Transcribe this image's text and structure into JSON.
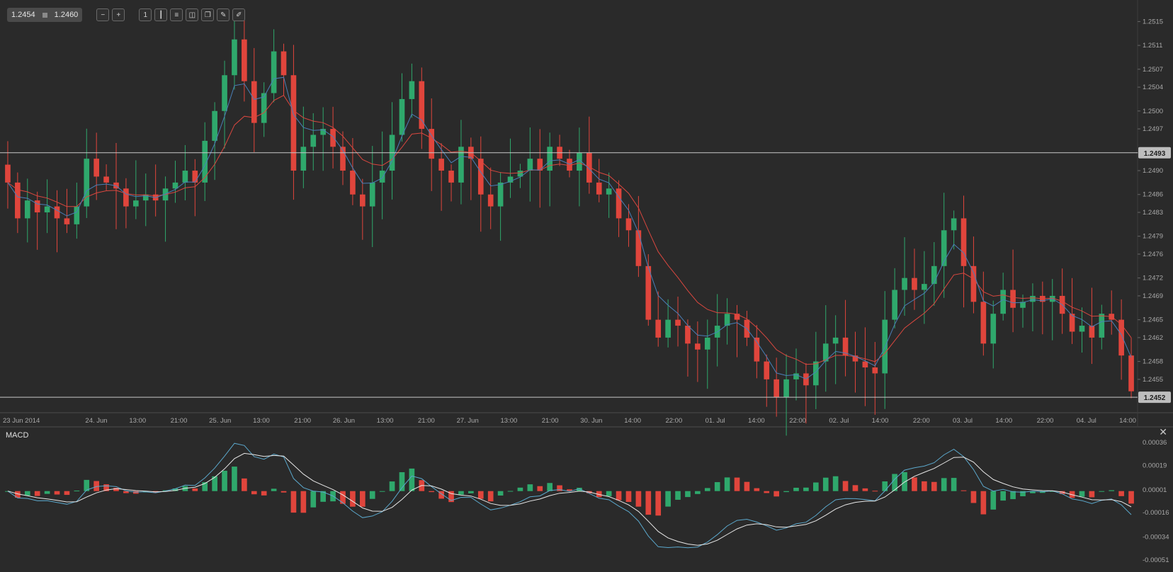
{
  "toolbar": {
    "bid": "1.2454",
    "ask": "1.2460",
    "buttons": [
      {
        "name": "zoom-out-icon",
        "glyph": "−"
      },
      {
        "name": "zoom-in-icon",
        "glyph": "+"
      },
      {
        "name": "timeframe-icon",
        "glyph": "1"
      },
      {
        "name": "candle-type-icon",
        "glyph": "┃"
      },
      {
        "name": "indicators-icon",
        "glyph": "≡"
      },
      {
        "name": "chart-icon",
        "glyph": "◫"
      },
      {
        "name": "objects-icon",
        "glyph": "❐"
      },
      {
        "name": "edit-icon",
        "glyph": "✎"
      },
      {
        "name": "draw-icon",
        "glyph": "✐"
      }
    ]
  },
  "macd_label": "MACD",
  "close_glyph": "✕",
  "colors": {
    "background": "#2a2a2a",
    "bull": "#2fa86c",
    "bear": "#e0453c",
    "ma_fast": "#4a7fb8",
    "ma_slow": "#d9473f",
    "macd_line": "#5ba8cc",
    "signal_line": "#e8e8e8",
    "grid_text": "#a8a8a8"
  },
  "chart_data": [
    {
      "type": "candlestick",
      "y_ticks": [
        "1.2515",
        "1.2511",
        "1.2507",
        "1.2504",
        "1.2500",
        "1.2497",
        "1.2493",
        "1.2490",
        "1.2486",
        "1.2483",
        "1.2479",
        "1.2476",
        "1.2472",
        "1.2469",
        "1.2465",
        "1.2462",
        "1.2458",
        "1.2455"
      ],
      "ylim": [
        1.245,
        1.2516
      ],
      "x_tick_labels": [
        "23 Jun 2014",
        "24. Jun",
        "13:00",
        "21:00",
        "25. Jun",
        "13:00",
        "21:00",
        "26. Jun",
        "13:00",
        "21:00",
        "27. Jun",
        "13:00",
        "21:00",
        "30. Jun",
        "14:00",
        "22:00",
        "01. Jul",
        "14:00",
        "22:00",
        "02. Jul",
        "14:00",
        "22:00",
        "03. Jul",
        "14:00",
        "22:00",
        "04. Jul",
        "14:00"
      ],
      "horizontal_lines": [
        {
          "value": 1.2493,
          "label": "1.2493"
        },
        {
          "value": 1.2452,
          "label": "1.2452"
        }
      ],
      "price_path": [
        1.2488,
        1.2482,
        1.2485,
        1.2483,
        1.2484,
        1.2482,
        1.2481,
        1.2484,
        1.2492,
        1.2489,
        1.2488,
        1.2487,
        1.2484,
        1.2485,
        1.2486,
        1.2485,
        1.2487,
        1.2488,
        1.249,
        1.2488,
        1.2495,
        1.25,
        1.2506,
        1.2512,
        1.2505,
        1.2498,
        1.2503,
        1.251,
        1.2506,
        1.249,
        1.2494,
        1.2496,
        1.2497,
        1.2494,
        1.249,
        1.2486,
        1.2484,
        1.2488,
        1.249,
        1.2496,
        1.2502,
        1.2505,
        1.2497,
        1.2492,
        1.249,
        1.2488,
        1.2494,
        1.2492,
        1.2486,
        1.2484,
        1.2488,
        1.2489,
        1.249,
        1.2492,
        1.249,
        1.2494,
        1.2492,
        1.249,
        1.2493,
        1.2488,
        1.2486,
        1.2487,
        1.2482,
        1.248,
        1.2474,
        1.2465,
        1.2462,
        1.2465,
        1.2464,
        1.2461,
        1.246,
        1.2462,
        1.2464,
        1.2466,
        1.2465,
        1.2462,
        1.2458,
        1.2455,
        1.2452,
        1.2455,
        1.2456,
        1.2454,
        1.2458,
        1.2461,
        1.2462,
        1.2459,
        1.2458,
        1.2457,
        1.2456,
        1.2465,
        1.247,
        1.2472,
        1.247,
        1.2471,
        1.2474,
        1.248,
        1.2482,
        1.2474,
        1.2468,
        1.2461,
        1.2466,
        1.247,
        1.2467,
        1.2468,
        1.2469,
        1.2468,
        1.2469,
        1.2466,
        1.2463,
        1.2464,
        1.2462,
        1.2466,
        1.2465,
        1.2459,
        1.2453
      ]
    },
    {
      "type": "macd",
      "name": "MACD",
      "y_ticks": [
        "0.00036",
        "0.00019",
        "0.00001",
        "-0.00016",
        "-0.00034",
        "-0.00051"
      ],
      "ylim": [
        -0.0006,
        0.00045
      ]
    }
  ]
}
